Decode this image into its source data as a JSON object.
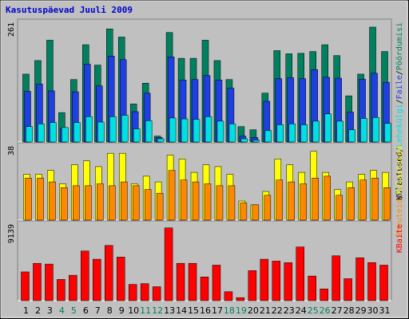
{
  "title": "Kasutuspäevad Juuli 2009",
  "chart_data": {
    "type": "bar",
    "categories": [
      "1",
      "2",
      "3",
      "4",
      "5",
      "6",
      "7",
      "8",
      "9",
      "10",
      "11",
      "12",
      "13",
      "14",
      "15",
      "16",
      "17",
      "18",
      "19",
      "20",
      "21",
      "22",
      "23",
      "24",
      "25",
      "26",
      "27",
      "28",
      "29",
      "30",
      "31"
    ],
    "weekend_categories": [
      "4",
      "5",
      "11",
      "12",
      "18",
      "19",
      "25",
      "26"
    ],
    "panels": [
      {
        "max_label": "261",
        "ymax": 261,
        "right_labels": [
          "Külastused",
          "Lehekülgi",
          "Faile",
          "Pöördumisi"
        ],
        "series": [
          {
            "name": "Pöördumisi",
            "color": "#00805f",
            "values": [
              150,
              180,
              225,
              65,
              138,
              215,
              170,
              250,
              232,
              84,
              130,
              13,
              242,
              185,
              185,
              225,
              180,
              138,
              34,
              27,
              108,
              202,
              195,
              196,
              200,
              215,
              191,
              102,
              150,
              254,
              200
            ]
          },
          {
            "name": "Faile",
            "color": "#1f3fe0",
            "values": [
              112,
              128,
              113,
              30,
              111,
              172,
              124,
              190,
              182,
              67,
              108,
              10,
              188,
              137,
              138,
              147,
              137,
              119,
              13,
              10,
              90,
              140,
              142,
              140,
              160,
              143,
              141,
              66,
              139,
              152,
              132
            ]
          },
          {
            "name": "Lehekülgi",
            "color": "#00e0e0",
            "values": [
              34,
              40,
              43,
              32,
              43,
              56,
              44,
              56,
              59,
              29,
              47,
              7,
              53,
              51,
              50,
              56,
              46,
              40,
              7,
              4,
              25,
              38,
              40,
              38,
              46,
              62,
              46,
              27,
              52,
              54,
              41
            ]
          }
        ]
      },
      {
        "max_label": "38",
        "ymax": 38,
        "right_labels": [
          "Arvuteid",
          "Külastused"
        ],
        "series": [
          {
            "name": "Külastused",
            "color": "#ffff00",
            "values": [
              24,
              24,
              26,
              19,
              29,
              31,
              28,
              35,
              35,
              19,
              23,
              20,
              34,
              32,
              25,
              29,
              28,
              24,
              10,
              8,
              15,
              32,
              29,
              25,
              36,
              25,
              16,
              20,
              24,
              26,
              25
            ]
          },
          {
            "name": "Arvuteid",
            "color": "#ff8800",
            "values": [
              22,
              22,
              20,
              17,
              18,
              18,
              19,
              18,
              20,
              18,
              16,
              14,
              26,
              21,
              20,
              19,
              18,
              18,
              9,
              8,
              13,
              21,
              20,
              19,
              22,
              23,
              13,
              17,
              21,
              22,
              17
            ]
          }
        ]
      },
      {
        "max_label": "9139",
        "ymax": 9139,
        "right_labels": [
          "KBaite"
        ],
        "series": [
          {
            "name": "KBaite",
            "color": "#ff0000",
            "values": [
              3505,
              4550,
              4460,
              2590,
              3100,
              6050,
              5050,
              6730,
              5310,
              1980,
              2080,
              1700,
              8870,
              4550,
              4550,
              2890,
              4330,
              1090,
              370,
              3660,
              5050,
              4820,
              4630,
              6550,
              3000,
              1430,
              5470,
              2680,
              5230,
              4640,
              4330
            ]
          }
        ]
      }
    ]
  },
  "colors": {
    "background": "#c0c0c0",
    "title": "#0000cc",
    "weekday_label": "#000000",
    "weekend_label": "#00805f",
    "separator": "#000000"
  }
}
